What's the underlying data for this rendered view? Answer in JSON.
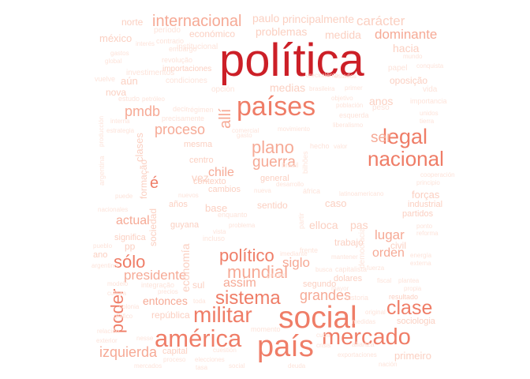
{
  "palette": {
    "dark": "#cc1f27",
    "medium": "#ef7d67",
    "light": "#f6aa96",
    "pale": "#fbd0c2",
    "faint": "#fde3da"
  },
  "words": [
    {
      "text": "política",
      "color": "dark"
    },
    {
      "text": "países",
      "color": "medium"
    },
    {
      "text": "social",
      "color": "medium"
    },
    {
      "text": "país",
      "color": "medium"
    },
    {
      "text": "américa",
      "color": "medium"
    },
    {
      "text": "militar",
      "color": "medium"
    },
    {
      "text": "mercado",
      "color": "medium"
    },
    {
      "text": "sistema",
      "color": "medium"
    },
    {
      "text": "clase",
      "color": "medium"
    },
    {
      "text": "nacional",
      "color": "medium"
    },
    {
      "text": "legal",
      "color": "medium"
    },
    {
      "text": "político",
      "color": "medium"
    },
    {
      "text": "mundial",
      "color": "light"
    },
    {
      "text": "sólo",
      "color": "medium"
    },
    {
      "text": "poder",
      "color": "medium"
    },
    {
      "text": "internacional",
      "color": "light"
    },
    {
      "text": "plano",
      "color": "light"
    },
    {
      "text": "proceso",
      "color": "light"
    },
    {
      "text": "guerra",
      "color": "light"
    },
    {
      "text": "grandes",
      "color": "light"
    },
    {
      "text": "izquierda",
      "color": "light"
    },
    {
      "text": "presidente",
      "color": "light"
    },
    {
      "text": "allí",
      "color": "light"
    },
    {
      "text": "ser",
      "color": "light"
    },
    {
      "text": "pmdb",
      "color": "light"
    },
    {
      "text": "orden",
      "color": "light"
    },
    {
      "text": "actual",
      "color": "light"
    },
    {
      "text": "entonces",
      "color": "light"
    },
    {
      "text": "siglo",
      "color": "light"
    },
    {
      "text": "assim",
      "color": "light"
    },
    {
      "text": "chile",
      "color": "light"
    },
    {
      "text": "lugar",
      "color": "light"
    },
    {
      "text": "dominante",
      "color": "light"
    },
    {
      "text": "carácter",
      "color": "pale"
    },
    {
      "text": "principalmente",
      "color": "pale"
    },
    {
      "text": "paulo",
      "color": "pale"
    },
    {
      "text": "norte",
      "color": "pale"
    },
    {
      "text": "méxico",
      "color": "pale"
    },
    {
      "text": "medida",
      "color": "pale"
    },
    {
      "text": "problemas",
      "color": "pale"
    },
    {
      "text": "económico",
      "color": "pale"
    },
    {
      "text": "hacia",
      "color": "pale"
    },
    {
      "text": "medias",
      "color": "pale"
    },
    {
      "text": "importaciones",
      "color": "pale"
    },
    {
      "text": "aún",
      "color": "pale"
    },
    {
      "text": "oposição",
      "color": "pale"
    },
    {
      "text": "anos",
      "color": "pale"
    },
    {
      "text": "economía",
      "color": "pale"
    },
    {
      "text": "república",
      "color": "pale"
    },
    {
      "text": "capital",
      "color": "pale"
    },
    {
      "text": "primeiro",
      "color": "pale"
    },
    {
      "text": "forças",
      "color": "pale"
    },
    {
      "text": "industrial",
      "color": "pale"
    },
    {
      "text": "partidos",
      "color": "pale"
    },
    {
      "text": "base",
      "color": "pale"
    },
    {
      "text": "años",
      "color": "pale"
    },
    {
      "text": "caso",
      "color": "pale"
    },
    {
      "text": "elloca",
      "color": "pale"
    },
    {
      "text": "pas",
      "color": "pale"
    },
    {
      "text": "sentido",
      "color": "pale"
    },
    {
      "text": "trabajo",
      "color": "pale"
    },
    {
      "text": "guyana",
      "color": "pale"
    },
    {
      "text": "general",
      "color": "pale"
    },
    {
      "text": "nova",
      "color": "pale"
    },
    {
      "text": "clases",
      "color": "pale"
    },
    {
      "text": "sociedad",
      "color": "pale"
    },
    {
      "text": "formação",
      "color": "pale"
    },
    {
      "text": "significa",
      "color": "pale"
    },
    {
      "text": "sul",
      "color": "pale"
    },
    {
      "text": "dolares",
      "color": "pale"
    },
    {
      "text": "segundo",
      "color": "pale"
    },
    {
      "text": "resultado",
      "color": "pale"
    },
    {
      "text": "sociologia",
      "color": "pale"
    },
    {
      "text": "vez",
      "color": "pale"
    },
    {
      "text": "mesma",
      "color": "pale"
    },
    {
      "text": "centro",
      "color": "pale"
    },
    {
      "text": "contexto",
      "color": "pale"
    },
    {
      "text": "cambios",
      "color": "pale"
    },
    {
      "text": "civil",
      "color": "pale"
    },
    {
      "text": "é",
      "color": "medium"
    },
    {
      "text": "pp",
      "color": "pale"
    },
    {
      "text": "ano",
      "color": "pale"
    },
    {
      "text": "período",
      "color": "faint"
    },
    {
      "text": "embargo",
      "color": "faint"
    },
    {
      "text": "institucional",
      "color": "faint"
    },
    {
      "text": "revolução",
      "color": "faint"
    },
    {
      "text": "investimentos",
      "color": "faint"
    },
    {
      "text": "condiciones",
      "color": "faint"
    },
    {
      "text": "brasileira",
      "color": "faint"
    },
    {
      "text": "primer",
      "color": "faint"
    },
    {
      "text": "objetivo",
      "color": "faint"
    },
    {
      "text": "mundo",
      "color": "faint"
    },
    {
      "text": "papel",
      "color": "faint"
    },
    {
      "text": "vida",
      "color": "faint"
    },
    {
      "text": "importancia",
      "color": "faint"
    },
    {
      "text": "peso",
      "color": "faint"
    },
    {
      "text": "esquerda",
      "color": "faint"
    },
    {
      "text": "estudo",
      "color": "faint"
    },
    {
      "text": "petróleo",
      "color": "faint"
    },
    {
      "text": "precisamente",
      "color": "faint"
    },
    {
      "text": "opción",
      "color": "faint"
    },
    {
      "text": "decir",
      "color": "faint"
    },
    {
      "text": "régimen",
      "color": "faint"
    },
    {
      "text": "comercial",
      "color": "faint"
    },
    {
      "text": "gasto",
      "color": "faint"
    },
    {
      "text": "hecho",
      "color": "faint"
    },
    {
      "text": "valor",
      "color": "faint"
    },
    {
      "text": "nueva",
      "color": "faint"
    },
    {
      "text": "relación",
      "color": "faint"
    },
    {
      "text": "exterior",
      "color": "faint"
    },
    {
      "text": "alianza",
      "color": "faint"
    },
    {
      "text": "exportaciones",
      "color": "faint"
    },
    {
      "text": "momento",
      "color": "faint"
    },
    {
      "text": "cuba",
      "color": "faint"
    },
    {
      "text": "crisis",
      "color": "faint"
    },
    {
      "text": "capitalista",
      "color": "faint"
    },
    {
      "text": "historia",
      "color": "faint"
    },
    {
      "text": "fuerza",
      "color": "faint"
    },
    {
      "text": "mayor",
      "color": "faint"
    },
    {
      "text": "fiscal",
      "color": "faint"
    },
    {
      "text": "integração",
      "color": "faint"
    },
    {
      "text": "precios",
      "color": "faint"
    },
    {
      "text": "toda",
      "color": "faint"
    },
    {
      "text": "proceso",
      "color": "faint"
    },
    {
      "text": "elecciones",
      "color": "faint"
    },
    {
      "text": "cuestión",
      "color": "faint"
    },
    {
      "text": "frente",
      "color": "faint"
    },
    {
      "text": "mantener",
      "color": "faint"
    },
    {
      "text": "imediante",
      "color": "faint"
    },
    {
      "text": "busca",
      "color": "faint"
    },
    {
      "text": "problema",
      "color": "faint"
    },
    {
      "text": "enquanto",
      "color": "faint"
    },
    {
      "text": "nuevos",
      "color": "faint"
    },
    {
      "text": "nacionales",
      "color": "faint"
    },
    {
      "text": "puede",
      "color": "faint"
    },
    {
      "text": "medidas",
      "color": "faint"
    },
    {
      "text": "original",
      "color": "faint"
    },
    {
      "text": "plantea",
      "color": "faint"
    },
    {
      "text": "propia",
      "color": "faint"
    },
    {
      "text": "liberalismo",
      "color": "faint"
    },
    {
      "text": "población",
      "color": "faint"
    },
    {
      "text": "pueblo",
      "color": "faint"
    },
    {
      "text": "argentina",
      "color": "faint"
    },
    {
      "text": "producción",
      "color": "faint"
    },
    {
      "text": "áfrica",
      "color": "faint"
    },
    {
      "text": "movimiento",
      "color": "faint"
    },
    {
      "text": "latinoamericano",
      "color": "faint"
    },
    {
      "text": "desarrollo",
      "color": "faint"
    },
    {
      "text": "democracia",
      "color": "faint"
    },
    {
      "text": "partir",
      "color": "faint"
    },
    {
      "text": "bilhões",
      "color": "faint"
    },
    {
      "text": "brasil",
      "color": "faint"
    },
    {
      "text": "colonia",
      "color": "faint"
    },
    {
      "text": "nesse",
      "color": "faint"
    },
    {
      "text": "gráfico",
      "color": "faint"
    },
    {
      "text": "argentino",
      "color": "faint"
    },
    {
      "text": "grupos",
      "color": "faint"
    },
    {
      "text": "incluso",
      "color": "faint"
    },
    {
      "text": "vista",
      "color": "faint"
    },
    {
      "text": "interés",
      "color": "faint"
    },
    {
      "text": "contrario",
      "color": "faint"
    },
    {
      "text": "conquista",
      "color": "faint"
    },
    {
      "text": "vuelve",
      "color": "faint"
    },
    {
      "text": "gastos",
      "color": "faint"
    },
    {
      "text": "global",
      "color": "faint"
    },
    {
      "text": "crecimiento",
      "color": "faint"
    },
    {
      "text": "estados",
      "color": "faint"
    },
    {
      "text": "unidos",
      "color": "faint"
    },
    {
      "text": "tierra",
      "color": "faint"
    },
    {
      "text": "cooperación",
      "color": "faint"
    },
    {
      "text": "principio",
      "color": "faint"
    },
    {
      "text": "ponto",
      "color": "faint"
    },
    {
      "text": "reforma",
      "color": "faint"
    },
    {
      "text": "energía",
      "color": "faint"
    },
    {
      "text": "externa",
      "color": "faint"
    },
    {
      "text": "interna",
      "color": "faint"
    },
    {
      "text": "estrategia",
      "color": "faint"
    },
    {
      "text": "modelo",
      "color": "faint"
    },
    {
      "text": "cultura",
      "color": "faint"
    },
    {
      "text": "nación",
      "color": "faint"
    },
    {
      "text": "social",
      "color": "faint"
    },
    {
      "text": "deuda",
      "color": "faint"
    },
    {
      "text": "mercados",
      "color": "faint"
    },
    {
      "text": "tasa",
      "color": "faint"
    },
    {
      "text": "inflación",
      "color": "faint"
    },
    {
      "text": "empresas",
      "color": "faint"
    }
  ]
}
